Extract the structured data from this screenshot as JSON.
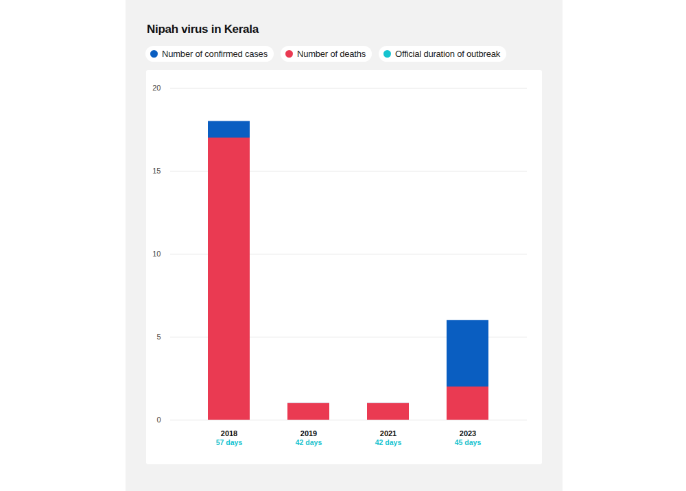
{
  "chart_data": {
    "type": "bar",
    "title": "Nipah virus in Kerala",
    "categories": [
      "2018",
      "2019",
      "2021",
      "2023"
    ],
    "series": [
      {
        "name": "Number of confirmed cases",
        "color": "#0a5ec1",
        "values": [
          18,
          1,
          1,
          6
        ]
      },
      {
        "name": "Number of deaths",
        "color": "#ea3a52",
        "values": [
          17,
          1,
          1,
          2
        ]
      }
    ],
    "durations": {
      "name": "Official duration of outbreak",
      "color": "#16c3cf",
      "labels": [
        "57 days",
        "42 days",
        "42 days",
        "45 days"
      ]
    },
    "stacked": false,
    "legend": "top",
    "grid": true,
    "ylim": [
      0,
      20
    ],
    "yticks": [
      0,
      5,
      10,
      15,
      20
    ]
  }
}
